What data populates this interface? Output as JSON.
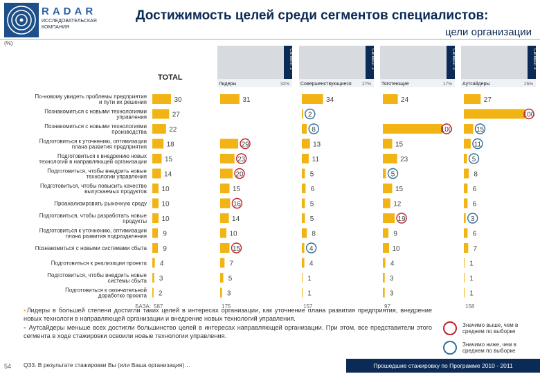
{
  "header": {
    "brand": "RADAR",
    "brand_sub": "ИССЛЕДОВАТЕЛЬСКАЯ КОМПАНИЯ",
    "title": "Достижимость целей среди сегментов специалистов:",
    "subtitle": "цели организации",
    "unit": "(%)"
  },
  "colors": {
    "bar": "#f2b315",
    "accent_dark": "#0b2a55",
    "above_circle": "#c0202a",
    "below_circle": "#2f6f9e"
  },
  "chart_data": {
    "type": "bar",
    "orientation": "horizontal",
    "total_label": "TOTAL",
    "categories": [
      "По-новому увидеть проблемы предприятия и пути их решения",
      "Познакомиться с новыми технологиями управления",
      "Познакомиться с новыми технологиями производства",
      "Подготовиться к уточнению, оптимизации плана развития предприятия",
      "Подготовиться к внедрению новых технологий в направляющей организации",
      "Подготовиться, чтобы внедрить новые технологии управления",
      "Подготовиться, чтобы повысить качество выпускаемых продуктов",
      "Проанализировать рыночную среду",
      "Подготовиться, чтобы разработать новые продукты",
      "Подготовиться к уточнению, оптимизации плана развития подразделения",
      "Познакомиться с новыми системами сбыта",
      "Подготовиться к реализации проекта",
      "Подготовиться, чтобы внедрить новые системы сбыта",
      "Подготовиться к окончательной доработке проекта"
    ],
    "series": [
      {
        "name": "TOTAL",
        "pct": "",
        "values": [
          30,
          27,
          22,
          18,
          15,
          14,
          10,
          10,
          10,
          9,
          9,
          4,
          3,
          2
        ],
        "marks": [
          "",
          "",
          "",
          "",
          "",
          "",
          "",
          "",
          "",
          "",
          "",
          "",
          "",
          ""
        ],
        "base": "587"
      },
      {
        "name": "Лидеры",
        "pct": "32%",
        "values": [
          31,
          null,
          null,
          29,
          23,
          20,
          15,
          16,
          14,
          10,
          15,
          7,
          5,
          3
        ],
        "marks": [
          "",
          "",
          "",
          "above",
          "above",
          "above",
          "",
          "above",
          "",
          "",
          "above",
          "",
          "",
          ""
        ],
        "base": "175"
      },
      {
        "name": "Совершенствующиеся",
        "pct": "27%",
        "values": [
          34,
          2,
          8,
          13,
          11,
          5,
          6,
          5,
          5,
          8,
          4,
          4,
          1,
          1
        ],
        "marks": [
          "",
          "below",
          "below",
          "",
          "",
          "",
          "",
          "",
          "",
          "",
          "below",
          "",
          "",
          ""
        ],
        "base": "157"
      },
      {
        "name": "Тяготеющие",
        "pct": "17%",
        "values": [
          24,
          null,
          100,
          15,
          23,
          5,
          15,
          12,
          19,
          9,
          10,
          4,
          3,
          3
        ],
        "marks": [
          "",
          "",
          "above",
          "",
          "",
          "below",
          "",
          "",
          "above",
          "",
          "",
          "",
          "",
          ""
        ],
        "base": "97"
      },
      {
        "name": "Аутсайдеры",
        "pct": "25%",
        "values": [
          27,
          100,
          15,
          11,
          5,
          8,
          6,
          6,
          3,
          6,
          7,
          1,
          1,
          1
        ],
        "marks": [
          "",
          "above",
          "below",
          "below",
          "below",
          "",
          "",
          "",
          "below",
          "",
          "",
          "",
          "",
          ""
        ],
        "base": "158"
      }
    ],
    "segment_tags": [
      "Сегмент 1",
      "Сегмент 2",
      "Сегмент 3",
      "Сегмент 4"
    ],
    "base_label": "БАЗА:"
  },
  "notes": {
    "p1": "Лидеры в большей степени достигли таких целей в интересах организации, как уточнение плана развития предприятия, внедрение новых технологи в направляющей организации и внедрение новых технологий управления.",
    "p2": "Аутсайдеры меньше всех достигли большинство целей в интересах направляющей организации. При этом, все представители этого сегмента в ходе стажировки освоили новые технологии управления.",
    "question": "Q33. В результате стажировки Вы (или Ваша организация)…",
    "page": "54"
  },
  "legend": {
    "above": "Значимо выше, чем в среднем по выборке",
    "below": "Значимо ниже, чем в среднем по выборке"
  },
  "footer": "Прошедшие стажировку по Программе 2010 - 2011"
}
